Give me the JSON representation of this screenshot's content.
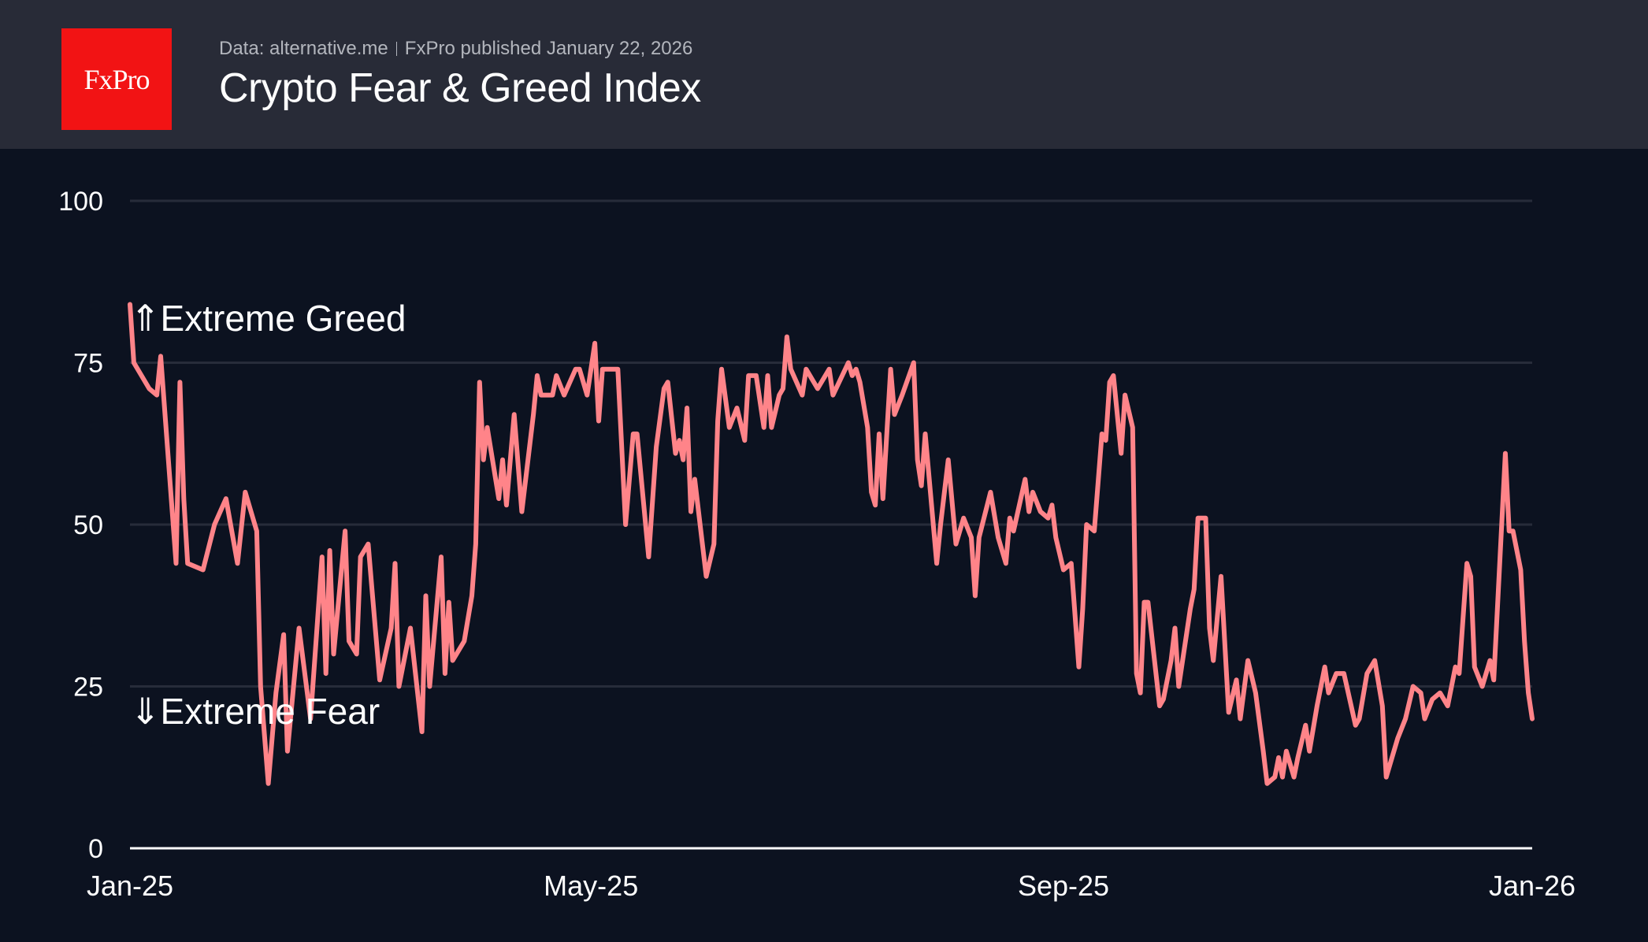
{
  "header": {
    "logo_text": "FxPro",
    "source": "Data: alternative.me",
    "published": "FxPro published January 22, 2026",
    "title": "Crypto Fear & Greed Index"
  },
  "colors": {
    "line": "#ff8489",
    "background": "#0c1220",
    "header": "#282b37",
    "logo": "#f21314",
    "grid": "#272c3a"
  },
  "chart_data": {
    "type": "line",
    "title": "Crypto Fear & Greed Index",
    "xlabel": "",
    "ylabel": "",
    "ylim": [
      0,
      100
    ],
    "xlim": [
      "2025-01-01",
      "2026-01-01"
    ],
    "yticks": [
      0,
      25,
      50,
      75,
      100
    ],
    "xticks": [
      {
        "date": "2025-01-01",
        "label": "Jan-25"
      },
      {
        "date": "2025-05-01",
        "label": "May-25"
      },
      {
        "date": "2025-09-01",
        "label": "Sep-25"
      },
      {
        "date": "2026-01-01",
        "label": "Jan-26"
      }
    ],
    "grid": "horizontal",
    "annotations": [
      {
        "text": "⇑Extreme Greed"
      },
      {
        "text": "⇓Extreme Fear"
      }
    ],
    "points": [
      [
        "2025-01-01",
        84
      ],
      [
        "2025-01-02",
        75
      ],
      [
        "2025-01-06",
        71
      ],
      [
        "2025-01-08",
        70
      ],
      [
        "2025-01-09",
        76
      ],
      [
        "2025-01-13",
        44
      ],
      [
        "2025-01-14",
        72
      ],
      [
        "2025-01-15",
        54
      ],
      [
        "2025-01-16",
        44
      ],
      [
        "2025-01-20",
        43
      ],
      [
        "2025-01-23",
        50
      ],
      [
        "2025-01-26",
        54
      ],
      [
        "2025-01-29",
        44
      ],
      [
        "2025-01-31",
        55
      ],
      [
        "2025-02-03",
        49
      ],
      [
        "2025-02-04",
        25
      ],
      [
        "2025-02-06",
        10
      ],
      [
        "2025-02-08",
        24
      ],
      [
        "2025-02-10",
        33
      ],
      [
        "2025-02-11",
        15
      ],
      [
        "2025-02-14",
        34
      ],
      [
        "2025-02-17",
        20
      ],
      [
        "2025-02-20",
        45
      ],
      [
        "2025-02-21",
        27
      ],
      [
        "2025-02-22",
        46
      ],
      [
        "2025-02-23",
        30
      ],
      [
        "2025-02-26",
        49
      ],
      [
        "2025-02-27",
        32
      ],
      [
        "2025-03-01",
        30
      ],
      [
        "2025-03-02",
        45
      ],
      [
        "2025-03-04",
        47
      ],
      [
        "2025-03-05",
        40
      ],
      [
        "2025-03-07",
        26
      ],
      [
        "2025-03-10",
        34
      ],
      [
        "2025-03-11",
        44
      ],
      [
        "2025-03-12",
        25
      ],
      [
        "2025-03-15",
        34
      ],
      [
        "2025-03-18",
        18
      ],
      [
        "2025-03-19",
        39
      ],
      [
        "2025-03-20",
        25
      ],
      [
        "2025-03-23",
        45
      ],
      [
        "2025-03-24",
        27
      ],
      [
        "2025-03-25",
        38
      ],
      [
        "2025-03-26",
        29
      ],
      [
        "2025-03-29",
        32
      ],
      [
        "2025-03-31",
        39
      ],
      [
        "2025-04-01",
        47
      ],
      [
        "2025-04-02",
        72
      ],
      [
        "2025-04-03",
        60
      ],
      [
        "2025-04-04",
        65
      ],
      [
        "2025-04-07",
        54
      ],
      [
        "2025-04-08",
        60
      ],
      [
        "2025-04-09",
        53
      ],
      [
        "2025-04-11",
        67
      ],
      [
        "2025-04-13",
        52
      ],
      [
        "2025-04-16",
        67
      ],
      [
        "2025-04-17",
        73
      ],
      [
        "2025-04-18",
        70
      ],
      [
        "2025-04-21",
        70
      ],
      [
        "2025-04-22",
        73
      ],
      [
        "2025-04-24",
        70
      ],
      [
        "2025-04-27",
        74
      ],
      [
        "2025-04-28",
        74
      ],
      [
        "2025-04-30",
        70
      ],
      [
        "2025-05-02",
        78
      ],
      [
        "2025-05-03",
        66
      ],
      [
        "2025-05-04",
        74
      ],
      [
        "2025-05-06",
        74
      ],
      [
        "2025-05-08",
        74
      ],
      [
        "2025-05-10",
        50
      ],
      [
        "2025-05-12",
        64
      ],
      [
        "2025-05-13",
        64
      ],
      [
        "2025-05-16",
        45
      ],
      [
        "2025-05-18",
        62
      ],
      [
        "2025-05-20",
        71
      ],
      [
        "2025-05-21",
        72
      ],
      [
        "2025-05-23",
        61
      ],
      [
        "2025-05-24",
        63
      ],
      [
        "2025-05-25",
        60
      ],
      [
        "2025-05-26",
        68
      ],
      [
        "2025-05-27",
        52
      ],
      [
        "2025-05-28",
        57
      ],
      [
        "2025-05-31",
        42
      ],
      [
        "2025-06-02",
        47
      ],
      [
        "2025-06-03",
        66
      ],
      [
        "2025-06-04",
        74
      ],
      [
        "2025-06-06",
        65
      ],
      [
        "2025-06-08",
        68
      ],
      [
        "2025-06-10",
        63
      ],
      [
        "2025-06-11",
        73
      ],
      [
        "2025-06-13",
        73
      ],
      [
        "2025-06-15",
        65
      ],
      [
        "2025-06-16",
        73
      ],
      [
        "2025-06-17",
        65
      ],
      [
        "2025-06-19",
        70
      ],
      [
        "2025-06-20",
        71
      ],
      [
        "2025-06-21",
        79
      ],
      [
        "2025-06-22",
        74
      ],
      [
        "2025-06-25",
        70
      ],
      [
        "2025-06-26",
        74
      ],
      [
        "2025-06-29",
        71
      ],
      [
        "2025-07-02",
        74
      ],
      [
        "2025-07-03",
        70
      ],
      [
        "2025-07-07",
        75
      ],
      [
        "2025-07-08",
        73
      ],
      [
        "2025-07-09",
        74
      ],
      [
        "2025-07-10",
        72
      ],
      [
        "2025-07-12",
        65
      ],
      [
        "2025-07-13",
        55
      ],
      [
        "2025-07-14",
        53
      ],
      [
        "2025-07-15",
        64
      ],
      [
        "2025-07-16",
        54
      ],
      [
        "2025-07-18",
        74
      ],
      [
        "2025-07-19",
        67
      ],
      [
        "2025-07-21",
        70
      ],
      [
        "2025-07-24",
        75
      ],
      [
        "2025-07-25",
        60
      ],
      [
        "2025-07-26",
        56
      ],
      [
        "2025-07-27",
        64
      ],
      [
        "2025-07-30",
        44
      ],
      [
        "2025-07-31",
        50
      ],
      [
        "2025-08-02",
        60
      ],
      [
        "2025-08-04",
        47
      ],
      [
        "2025-08-06",
        51
      ],
      [
        "2025-08-08",
        48
      ],
      [
        "2025-08-09",
        39
      ],
      [
        "2025-08-10",
        48
      ],
      [
        "2025-08-13",
        55
      ],
      [
        "2025-08-15",
        48
      ],
      [
        "2025-08-17",
        44
      ],
      [
        "2025-08-18",
        51
      ],
      [
        "2025-08-19",
        49
      ],
      [
        "2025-08-22",
        57
      ],
      [
        "2025-08-23",
        52
      ],
      [
        "2025-08-24",
        55
      ],
      [
        "2025-08-26",
        52
      ],
      [
        "2025-08-28",
        51
      ],
      [
        "2025-08-29",
        53
      ],
      [
        "2025-08-30",
        48
      ],
      [
        "2025-09-01",
        43
      ],
      [
        "2025-09-03",
        44
      ],
      [
        "2025-09-05",
        28
      ],
      [
        "2025-09-06",
        37
      ],
      [
        "2025-09-07",
        50
      ],
      [
        "2025-09-09",
        49
      ],
      [
        "2025-09-11",
        64
      ],
      [
        "2025-09-12",
        63
      ],
      [
        "2025-09-13",
        72
      ],
      [
        "2025-09-14",
        73
      ],
      [
        "2025-09-16",
        61
      ],
      [
        "2025-09-17",
        70
      ],
      [
        "2025-09-19",
        65
      ],
      [
        "2025-09-20",
        27
      ],
      [
        "2025-09-21",
        24
      ],
      [
        "2025-09-22",
        38
      ],
      [
        "2025-09-23",
        38
      ],
      [
        "2025-09-26",
        22
      ],
      [
        "2025-09-27",
        23
      ],
      [
        "2025-09-29",
        29
      ],
      [
        "2025-09-30",
        34
      ],
      [
        "2025-10-01",
        25
      ],
      [
        "2025-10-04",
        37
      ],
      [
        "2025-10-05",
        40
      ],
      [
        "2025-10-06",
        51
      ],
      [
        "2025-10-08",
        51
      ],
      [
        "2025-10-09",
        34
      ],
      [
        "2025-10-10",
        29
      ],
      [
        "2025-10-12",
        42
      ],
      [
        "2025-10-14",
        21
      ],
      [
        "2025-10-16",
        26
      ],
      [
        "2025-10-17",
        20
      ],
      [
        "2025-10-19",
        29
      ],
      [
        "2025-10-21",
        24
      ],
      [
        "2025-10-23",
        15
      ],
      [
        "2025-10-24",
        10
      ],
      [
        "2025-10-26",
        11
      ],
      [
        "2025-10-27",
        14
      ],
      [
        "2025-10-28",
        11
      ],
      [
        "2025-10-29",
        15
      ],
      [
        "2025-10-31",
        11
      ],
      [
        "2025-11-01",
        14
      ],
      [
        "2025-11-03",
        19
      ],
      [
        "2025-11-04",
        15
      ],
      [
        "2025-11-06",
        22
      ],
      [
        "2025-11-08",
        28
      ],
      [
        "2025-11-09",
        24
      ],
      [
        "2025-11-11",
        27
      ],
      [
        "2025-11-13",
        27
      ],
      [
        "2025-11-16",
        19
      ],
      [
        "2025-11-17",
        20
      ],
      [
        "2025-11-19",
        27
      ],
      [
        "2025-11-21",
        29
      ],
      [
        "2025-11-23",
        22
      ],
      [
        "2025-11-24",
        11
      ],
      [
        "2025-11-27",
        17
      ],
      [
        "2025-11-29",
        20
      ],
      [
        "2025-12-01",
        25
      ],
      [
        "2025-12-03",
        24
      ],
      [
        "2025-12-04",
        20
      ],
      [
        "2025-12-06",
        23
      ],
      [
        "2025-12-08",
        24
      ],
      [
        "2025-12-10",
        22
      ],
      [
        "2025-12-12",
        28
      ],
      [
        "2025-12-13",
        27
      ],
      [
        "2025-12-15",
        44
      ],
      [
        "2025-12-16",
        42
      ],
      [
        "2025-12-17",
        28
      ],
      [
        "2025-12-19",
        25
      ],
      [
        "2025-12-21",
        29
      ],
      [
        "2025-12-22",
        26
      ],
      [
        "2025-12-25",
        61
      ],
      [
        "2025-12-26",
        49
      ],
      [
        "2025-12-27",
        49
      ],
      [
        "2025-12-29",
        43
      ],
      [
        "2025-12-30",
        32
      ],
      [
        "2025-12-31",
        24
      ],
      [
        "2026-01-01",
        20
      ]
    ]
  }
}
